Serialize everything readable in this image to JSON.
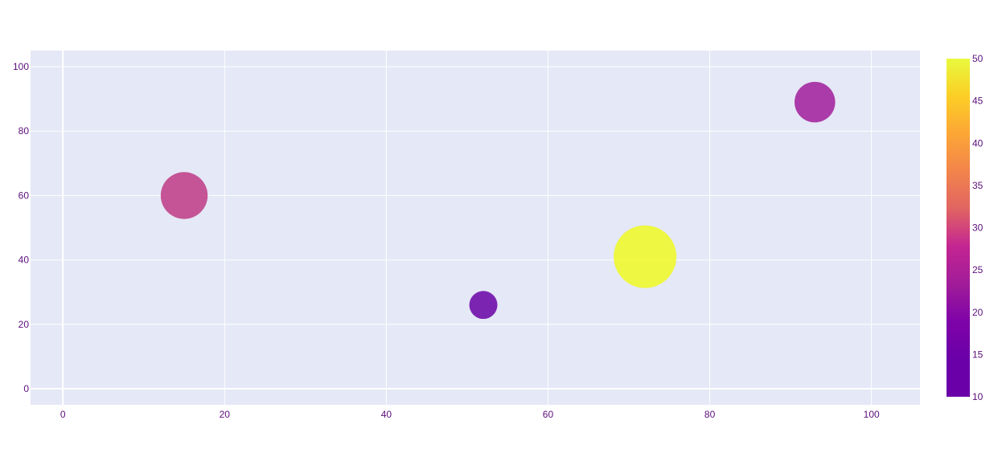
{
  "chart_data": {
    "type": "scatter",
    "title": "",
    "xlabel": "",
    "ylabel": "",
    "xlim": [
      -4,
      106
    ],
    "ylim": [
      -5,
      105
    ],
    "xticks": [
      0,
      20,
      40,
      60,
      80,
      100
    ],
    "yticks": [
      0,
      20,
      40,
      60,
      80,
      100
    ],
    "grid": true,
    "points": [
      {
        "x": 15,
        "y": 60,
        "size": 28,
        "color_value": 28
      },
      {
        "x": 52,
        "y": 26,
        "size": 10,
        "color_value": 18
      },
      {
        "x": 72,
        "y": 41,
        "size": 50,
        "color_value": 50
      },
      {
        "x": 93,
        "y": 89,
        "size": 21,
        "color_value": 24
      }
    ],
    "colorbar": {
      "min": 10,
      "max": 50,
      "ticks": [
        10,
        15,
        20,
        25,
        30,
        35,
        40,
        45,
        50
      ],
      "colorscale": "plasma"
    }
  },
  "colors": {
    "plot_background": "#e5e8f6",
    "grid": "#ffffff",
    "tick_label": "#5b0f7a"
  }
}
